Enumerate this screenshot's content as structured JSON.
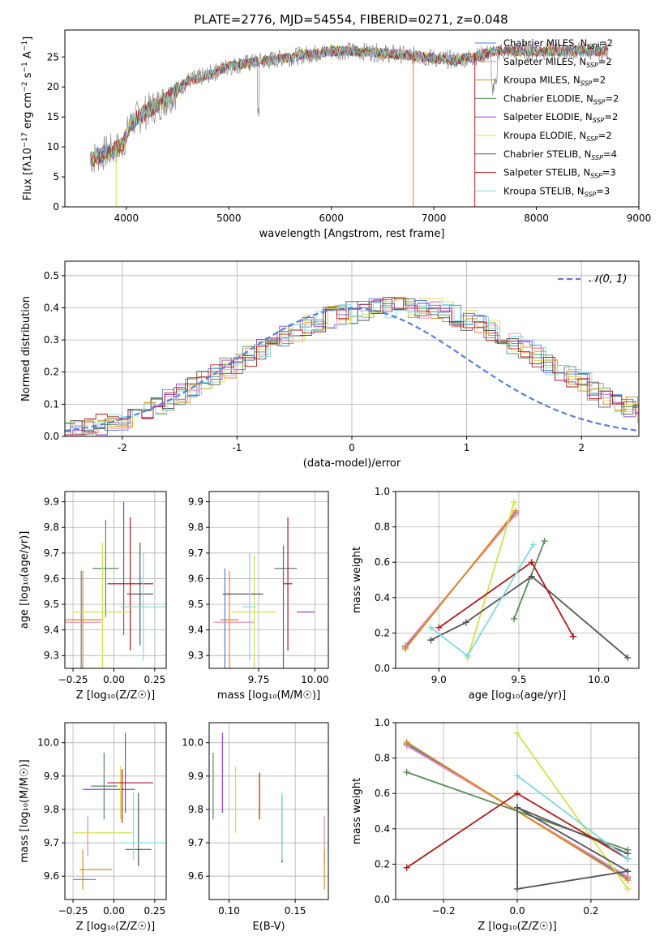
{
  "title": "PLATE=2776, MJD=54554, FIBERID=0271, z=0.048",
  "series": [
    {
      "name": "Chabrier MILES, N",
      "nssp": "=2",
      "color": "#4f7fd1"
    },
    {
      "name": "Salpeter MILES, N",
      "nssp": "=2",
      "color": "#e98aaa"
    },
    {
      "name": "Kroupa MILES, N",
      "nssp": "=2",
      "color": "#d98a1c"
    },
    {
      "name": "Chabrier ELODIE, N",
      "nssp": "=2",
      "color": "#5b8a5b"
    },
    {
      "name": "Salpeter ELODIE, N",
      "nssp": "=2",
      "color": "#9b3fbf"
    },
    {
      "name": "Kroupa ELODIE, N",
      "nssp": "=2",
      "color": "#d6e04a"
    },
    {
      "name": "Chabrier STELIB, N",
      "nssp": "=4",
      "color": "#555555"
    },
    {
      "name": "Salpeter STELIB, N",
      "nssp": "=3",
      "color": "#b01a1a"
    },
    {
      "name": "Kroupa STELIB, N",
      "nssp": "=3",
      "color": "#7fd8e0"
    }
  ],
  "chart_data": [
    {
      "id": "spectrum",
      "type": "line",
      "xlabel": "wavelength [Angstrom, rest frame]",
      "ylabel_prefix": "Flux [f",
      "ylabel_mid": "10",
      "ylabel_exp1": "−17",
      "ylabel_rest": " erg cm",
      "ylabel_exp2": "−2",
      "ylabel_s": " s",
      "ylabel_exp3": "−1",
      "ylabel_end": " A",
      "ylabel_exp4": "−1",
      "ylabel_close": "]",
      "xlim": [
        3400,
        9000
      ],
      "ylim": [
        0,
        29.5
      ],
      "xticks": [
        4000,
        5000,
        6000,
        7000,
        8000,
        9000
      ],
      "yticks": [
        0,
        5,
        10,
        15,
        20,
        25
      ],
      "continuum": [
        [
          3650,
          8
        ],
        [
          3800,
          9
        ],
        [
          3950,
          10
        ],
        [
          4050,
          14
        ],
        [
          4200,
          16
        ],
        [
          4400,
          18
        ],
        [
          4600,
          21
        ],
        [
          4800,
          22
        ],
        [
          5000,
          23.5
        ],
        [
          5200,
          24
        ],
        [
          5400,
          24.5
        ],
        [
          5600,
          25
        ],
        [
          5800,
          25.5
        ],
        [
          6000,
          26
        ],
        [
          6200,
          26
        ],
        [
          6400,
          25.8
        ],
        [
          6600,
          25.5
        ],
        [
          6800,
          25.2
        ],
        [
          7000,
          24.8
        ],
        [
          7200,
          24.5
        ],
        [
          7400,
          25
        ],
        [
          7600,
          26
        ]
      ],
      "model_end": 8700
    },
    {
      "id": "residuals",
      "type": "histogram",
      "xlabel": "(data-model)/error",
      "ylabel": "Normed distribution",
      "xlim": [
        -2.5,
        2.5
      ],
      "ylim": [
        0,
        0.545
      ],
      "xticks": [
        -2,
        -1,
        0,
        1,
        2
      ],
      "yticks": [
        0.0,
        0.1,
        0.2,
        0.3,
        0.4,
        0.5
      ],
      "legend": "𝒩(0, 1)",
      "bin_width": 0.1,
      "base": [
        0.018,
        0.022,
        0.028,
        0.035,
        0.043,
        0.053,
        0.065,
        0.079,
        0.095,
        0.112,
        0.13,
        0.148,
        0.17,
        0.195,
        0.21,
        0.225,
        0.25,
        0.27,
        0.29,
        0.31,
        0.325,
        0.345,
        0.36,
        0.37,
        0.38,
        0.385,
        0.39,
        0.395,
        0.4,
        0.4,
        0.4,
        0.4,
        0.395,
        0.385,
        0.375,
        0.36,
        0.345,
        0.33,
        0.31,
        0.29,
        0.27,
        0.25,
        0.225,
        0.205,
        0.185,
        0.165,
        0.145,
        0.125,
        0.108,
        0.092,
        0.078,
        0.065,
        0.055,
        0.045,
        0.038,
        0.031,
        0.026,
        0.022,
        0.02,
        0.019,
        0.018
      ]
    },
    {
      "id": "z-age",
      "type": "errorbar",
      "xlabel": "Z [log₁₀(Z/Z☉)]",
      "ylabel": "age  [log₁₀(age/yr)]",
      "xlim": [
        -0.3,
        0.32
      ],
      "ylim": [
        9.25,
        9.94
      ],
      "xticks": [
        -0.25,
        0.0,
        0.25
      ],
      "xticklabels": [
        "−0.25",
        "0.00",
        "0.25"
      ],
      "yticks": [
        9.3,
        9.4,
        9.5,
        9.6,
        9.7,
        9.8,
        9.9
      ],
      "points": [
        {
          "s": 0,
          "x": -0.2,
          "y": 9.43,
          "xe": 0.0,
          "ye": 0.2,
          "xh": 0.05,
          "yh": 0.0
        },
        {
          "s": 1,
          "x": -0.2,
          "y": 9.43,
          "xe": 0.12,
          "ye": 0.0,
          "xh": 0.0,
          "yh": 0.0
        },
        {
          "s": 2,
          "x": -0.19,
          "y": 9.44,
          "xe": 0.12,
          "ye": 0.19,
          "xh": 0.0,
          "yh": 0.0
        },
        {
          "s": 3,
          "x": -0.05,
          "y": 9.64,
          "xe": 0.08,
          "ye": 0.19,
          "xh": 0.0,
          "yh": 0.0
        },
        {
          "s": 4,
          "x": 0.06,
          "y": 9.64,
          "xe": 0.0,
          "ye": 0.26,
          "xh": 0.0,
          "yh": 0.0
        },
        {
          "s": 5,
          "x": -0.07,
          "y": 9.47,
          "xe": 0.18,
          "ye": 0.27,
          "xh": 0.0,
          "yh": 0.0
        },
        {
          "s": 6,
          "x": 0.16,
          "y": 9.54,
          "xe": 0.08,
          "ye": 0.2,
          "xh": 0.0,
          "yh": 0.0
        },
        {
          "s": 7,
          "x": 0.1,
          "y": 9.58,
          "xe": 0.14,
          "ye": 0.26,
          "xh": 0.0,
          "yh": 0.0
        },
        {
          "s": 8,
          "x": 0.18,
          "y": 9.49,
          "xe": 0.14,
          "ye": 0.21,
          "xh": 0.0,
          "yh": 0.0
        }
      ]
    },
    {
      "id": "mass-age",
      "type": "errorbar",
      "xlabel": "mass [log₁₀(M/M☉)]",
      "ylabel": "",
      "xlim": [
        9.53,
        10.06
      ],
      "ylim": [
        9.25,
        9.94
      ],
      "xticks": [
        9.75,
        10.0
      ],
      "xticklabels": [
        "9.75",
        "10.00"
      ],
      "yticks": [
        9.3,
        9.4,
        9.5,
        9.6,
        9.7,
        9.8,
        9.9
      ],
      "points": [
        {
          "s": 0,
          "x": 9.6,
          "y": 9.44,
          "xe": 0.0,
          "ye": 0.2,
          "xh": 0,
          "yh": 0
        },
        {
          "s": 1,
          "x": 9.64,
          "y": 9.43,
          "xe": 0.09,
          "ye": 0.0,
          "xh": 0,
          "yh": 0
        },
        {
          "s": 2,
          "x": 9.62,
          "y": 9.44,
          "xe": 0.04,
          "ye": 0.19,
          "xh": 0,
          "yh": 0
        },
        {
          "s": 3,
          "x": 9.87,
          "y": 9.64,
          "xe": 0.05,
          "ye": 0.0,
          "xh": 0,
          "yh": 0
        },
        {
          "s": 4,
          "x": 9.86,
          "y": 9.47,
          "xe": 0.0,
          "ye": 0.26,
          "xh": 0,
          "yh": 0
        },
        {
          "s": 5,
          "x": 9.73,
          "y": 9.47,
          "xe": 0.1,
          "ye": 0.22,
          "xh": 0,
          "yh": 0
        },
        {
          "s": 6,
          "x": 9.68,
          "y": 9.54,
          "xe": 0.09,
          "ye": 0.0,
          "xh": 0,
          "yh": 0
        },
        {
          "s": 7,
          "x": 9.88,
          "y": 9.58,
          "xe": 0.02,
          "ye": 0.26,
          "xh": 0,
          "yh": 0
        },
        {
          "s": 8,
          "x": 9.71,
          "y": 9.49,
          "xe": 0.03,
          "ye": 0.21,
          "xh": 0,
          "yh": 0
        },
        {
          "s": 4,
          "x": 9.96,
          "y": 9.47,
          "xe": 0.04,
          "ye": 0.0,
          "xh": 0,
          "yh": 0
        }
      ]
    },
    {
      "id": "age-weight",
      "type": "line",
      "xlabel": "age  [log₁₀(age/yr)]",
      "ylabel": "mass weight",
      "xlim": [
        8.73,
        10.25
      ],
      "ylim": [
        0,
        1.0
      ],
      "xticks": [
        9.0,
        9.5,
        10.0
      ],
      "xticklabels": [
        "9.0",
        "9.5",
        "10.0"
      ],
      "yticks": [
        0.0,
        0.2,
        0.4,
        0.6,
        0.8,
        1.0
      ],
      "lines": [
        {
          "s": 0,
          "x": [
            8.79,
            9.48
          ],
          "y": [
            0.12,
            0.88
          ]
        },
        {
          "s": 1,
          "x": [
            8.79,
            9.48
          ],
          "y": [
            0.13,
            0.87
          ]
        },
        {
          "s": 2,
          "x": [
            8.79,
            9.48
          ],
          "y": [
            0.11,
            0.89
          ]
        },
        {
          "s": 3,
          "x": [
            9.47,
            9.66
          ],
          "y": [
            0.28,
            0.72
          ]
        },
        {
          "s": 5,
          "x": [
            9.18,
            9.47
          ],
          "y": [
            0.06,
            0.94
          ]
        },
        {
          "s": 6,
          "x": [
            8.95,
            9.17,
            9.58,
            10.18
          ],
          "y": [
            0.16,
            0.26,
            0.52,
            0.06
          ]
        },
        {
          "s": 7,
          "x": [
            9.0,
            9.58,
            9.84
          ],
          "y": [
            0.23,
            0.6,
            0.18
          ]
        },
        {
          "s": 8,
          "x": [
            8.95,
            9.18,
            9.59
          ],
          "y": [
            0.23,
            0.07,
            0.7
          ]
        }
      ]
    },
    {
      "id": "z-mass",
      "type": "errorbar",
      "xlabel": "Z [log₁₀(Z/Z☉)]",
      "ylabel": "mass [log₁₀(M/M☉)]",
      "xlim": [
        -0.3,
        0.32
      ],
      "ylim": [
        9.53,
        10.06
      ],
      "xticks": [
        -0.25,
        0.0,
        0.25
      ],
      "xticklabels": [
        "−0.25",
        "0.00",
        "0.25"
      ],
      "yticks": [
        9.6,
        9.7,
        9.8,
        9.9,
        10.0
      ],
      "points": [
        {
          "s": 0,
          "x": -0.18,
          "y": 9.59,
          "xe": 0.07,
          "ye": 0.0,
          "xh": 0,
          "yh": 0
        },
        {
          "s": 1,
          "x": -0.16,
          "y": 9.72,
          "xe": 0.0,
          "ye": 0.06,
          "xh": 0,
          "yh": 0
        },
        {
          "s": 2,
          "x": -0.11,
          "y": 9.62,
          "xe": 0.1,
          "ye": 0.0,
          "xh": 0,
          "yh": 0
        },
        {
          "s": 2,
          "x": -0.19,
          "y": 9.62,
          "xe": 0.0,
          "ye": 0.06,
          "xh": 0,
          "yh": 0
        },
        {
          "s": 3,
          "x": -0.06,
          "y": 9.87,
          "xe": 0.08,
          "ye": 0.1,
          "xh": 0,
          "yh": 0
        },
        {
          "s": 4,
          "x": -0.03,
          "y": 9.86,
          "xe": 0.16,
          "ye": 0.0,
          "xh": 0,
          "yh": 0
        },
        {
          "s": 4,
          "x": 0.07,
          "y": 9.91,
          "xe": 0.0,
          "ye": 0.12,
          "xh": 0,
          "yh": 0
        },
        {
          "s": 5,
          "x": -0.07,
          "y": 9.73,
          "xe": 0.18,
          "ye": 0.0,
          "xh": 0,
          "yh": 0
        },
        {
          "s": 5,
          "x": 0.04,
          "y": 9.85,
          "xe": 0.0,
          "ye": 0.08,
          "xh": 0,
          "yh": 0
        },
        {
          "s": 6,
          "x": 0.15,
          "y": 9.68,
          "xe": 0.08,
          "ye": 0.0,
          "xh": 0,
          "yh": 0
        },
        {
          "s": 6,
          "x": 0.15,
          "y": 9.74,
          "xe": 0.0,
          "ye": 0.11,
          "xh": 0,
          "yh": 0
        },
        {
          "s": 7,
          "x": 0.1,
          "y": 9.88,
          "xe": 0.14,
          "ye": 0.0,
          "xh": 0,
          "yh": 0
        },
        {
          "s": 7,
          "x": 0.05,
          "y": 9.84,
          "xe": 0.0,
          "ye": 0.08,
          "xh": 0,
          "yh": 0
        },
        {
          "s": 8,
          "x": 0.18,
          "y": 9.7,
          "xe": 0.14,
          "ye": 0.0,
          "xh": 0,
          "yh": 0
        },
        {
          "s": 8,
          "x": 0.12,
          "y": 9.75,
          "xe": 0.0,
          "ye": 0.1,
          "xh": 0,
          "yh": 0
        }
      ]
    },
    {
      "id": "ebv-mass",
      "type": "errorbar",
      "xlabel": "E(B-V)",
      "ylabel": "",
      "xlim": [
        0.085,
        0.175
      ],
      "ylim": [
        9.53,
        10.06
      ],
      "xticks": [
        0.1,
        0.15
      ],
      "xticklabels": [
        "0.10",
        "0.15"
      ],
      "yticks": [
        9.6,
        9.7,
        9.8,
        9.9,
        10.0
      ],
      "points": [
        {
          "s": 3,
          "x": 0.088,
          "y": 9.87,
          "xe": 0,
          "ye": 0.1,
          "xh": 0,
          "yh": 0
        },
        {
          "s": 4,
          "x": 0.095,
          "y": 9.91,
          "xe": 0,
          "ye": 0.12,
          "xh": 0,
          "yh": 0
        },
        {
          "s": 5,
          "x": 0.105,
          "y": 9.83,
          "xe": 0,
          "ye": 0.1,
          "xh": 0,
          "yh": 0
        },
        {
          "s": 7,
          "x": 0.123,
          "y": 9.84,
          "xe": 0,
          "ye": 0.07,
          "xh": 0,
          "yh": 0
        },
        {
          "s": 6,
          "x": 0.14,
          "y": 9.74,
          "xe": 0,
          "ye": 0.1,
          "xh": 0,
          "yh": 0
        },
        {
          "s": 8,
          "x": 0.14,
          "y": 9.75,
          "xe": 0,
          "ye": 0.1,
          "xh": 0,
          "yh": 0
        },
        {
          "s": 1,
          "x": 0.172,
          "y": 9.71,
          "xe": 0,
          "ye": 0.07,
          "xh": 0,
          "yh": 0
        },
        {
          "s": 2,
          "x": 0.172,
          "y": 9.62,
          "xe": 0,
          "ye": 0.06,
          "xh": 0,
          "yh": 0
        }
      ]
    },
    {
      "id": "z-weight",
      "type": "line",
      "xlabel": "Z [log₁₀(Z/Z☉)]",
      "ylabel": "mass weight",
      "xlim": [
        -0.33,
        0.33
      ],
      "ylim": [
        0,
        1.0
      ],
      "xticks": [
        -0.2,
        0.0,
        0.2
      ],
      "xticklabels": [
        "−0.2",
        "0.0",
        "0.2"
      ],
      "yticks": [
        0.0,
        0.2,
        0.4,
        0.6,
        0.8,
        1.0
      ],
      "lines": [
        {
          "s": 0,
          "x": [
            -0.3,
            0.3
          ],
          "y": [
            0.88,
            0.12
          ]
        },
        {
          "s": 1,
          "x": [
            -0.3,
            0.3
          ],
          "y": [
            0.87,
            0.13
          ]
        },
        {
          "s": 2,
          "x": [
            -0.3,
            0.3
          ],
          "y": [
            0.89,
            0.11
          ]
        },
        {
          "s": 3,
          "x": [
            -0.3,
            0.3
          ],
          "y": [
            0.72,
            0.28
          ]
        },
        {
          "s": 5,
          "x": [
            0.0,
            0.3
          ],
          "y": [
            0.94,
            0.06
          ]
        },
        {
          "s": 6,
          "x": [
            0.0,
            0.0,
            0.3,
            0.0
          ],
          "y": [
            0.52,
            0.06,
            0.16,
            0.52
          ]
        },
        {
          "s": 6,
          "x": [
            0.0,
            0.3
          ],
          "y": [
            0.52,
            0.26
          ]
        },
        {
          "s": 7,
          "x": [
            -0.3,
            0.0,
            0.3
          ],
          "y": [
            0.18,
            0.6,
            0.23
          ]
        },
        {
          "s": 8,
          "x": [
            0.0,
            0.3
          ],
          "y": [
            0.7,
            0.23
          ]
        }
      ]
    }
  ]
}
